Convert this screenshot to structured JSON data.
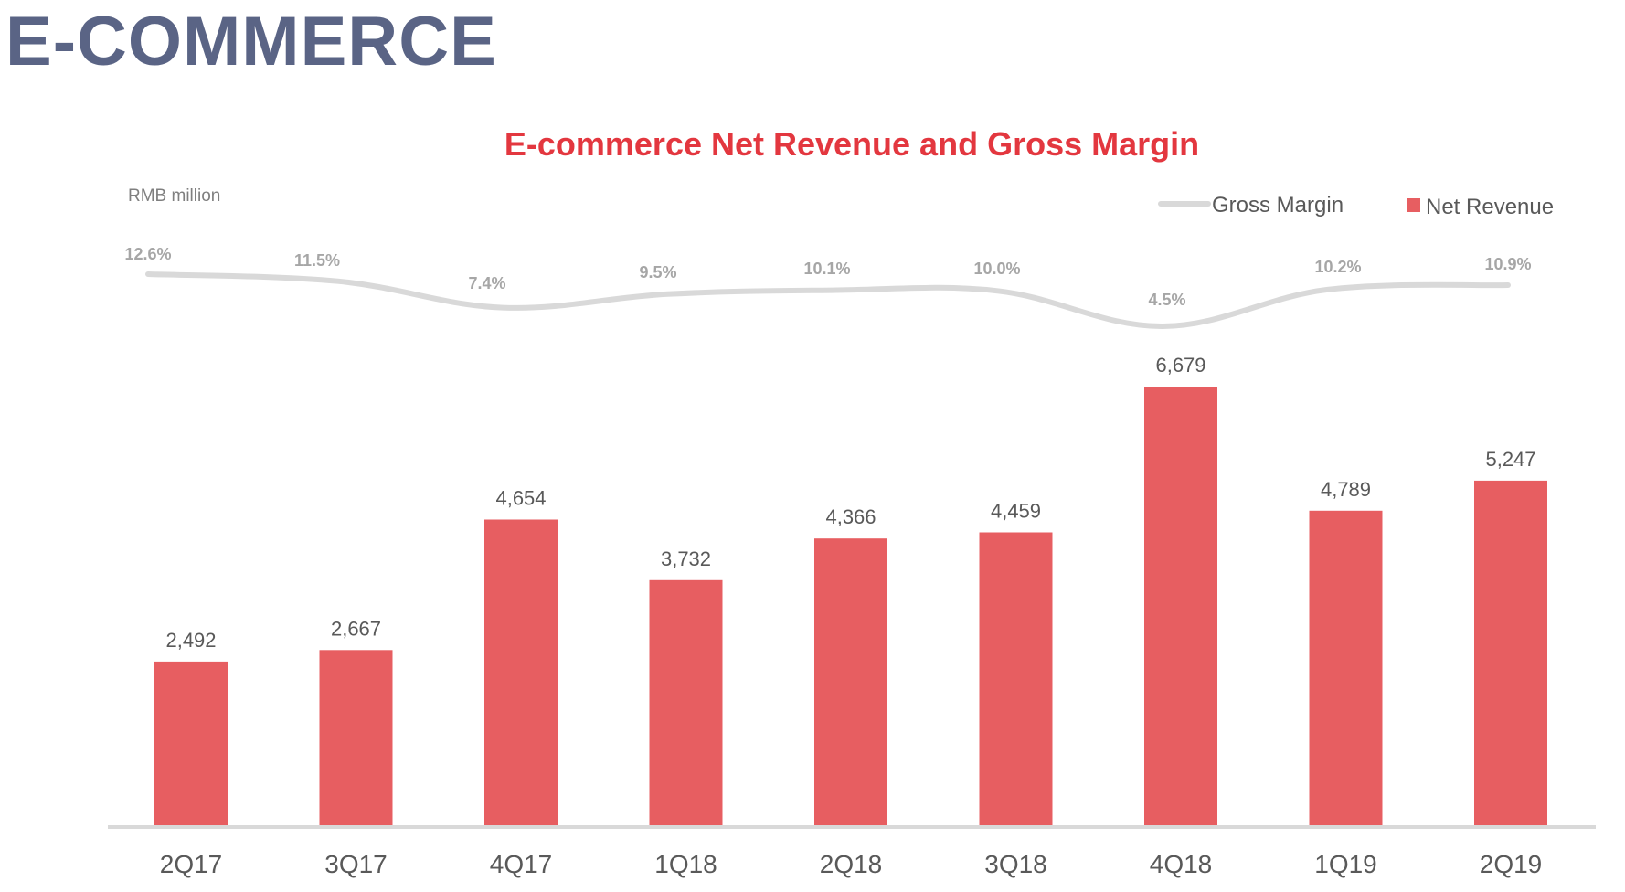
{
  "page": {
    "title": "E-COMMERCE"
  },
  "colors": {
    "title": "#5a6485",
    "chart_title": "#e3373f",
    "bar": "#e75e61",
    "line": "#d9d9d9",
    "value_label": "#595959",
    "margin_label": "#a6a6a6",
    "axis": "#d9d9d9"
  },
  "chart_data": {
    "type": "bar",
    "title": "E-commerce Net Revenue and Gross Margin",
    "unit_label": "RMB million",
    "legend_position": "top-right",
    "categories": [
      "2Q17",
      "3Q17",
      "4Q17",
      "1Q18",
      "2Q18",
      "3Q18",
      "4Q18",
      "1Q19",
      "2Q19"
    ],
    "series": [
      {
        "name": "Net Revenue",
        "kind": "bar",
        "values": [
          2492,
          2667,
          4654,
          3732,
          4366,
          4459,
          6679,
          4789,
          5247
        ],
        "labels": [
          "2,492",
          "2,667",
          "4,654",
          "3,732",
          "4,366",
          "4,459",
          "6,679",
          "4,789",
          "5,247"
        ]
      },
      {
        "name": "Gross Margin",
        "kind": "line",
        "values": [
          12.6,
          11.5,
          7.4,
          9.5,
          10.1,
          10.0,
          4.5,
          10.2,
          10.9
        ],
        "labels": [
          "12.6%",
          "11.5%",
          "7.4%",
          "9.5%",
          "10.1%",
          "10.0%",
          "4.5%",
          "10.2%",
          "10.9%"
        ]
      }
    ],
    "legend": [
      "Gross Margin",
      "Net Revenue"
    ],
    "ylim": [
      0,
      7000
    ],
    "margin_ylim": [
      0,
      13
    ]
  }
}
